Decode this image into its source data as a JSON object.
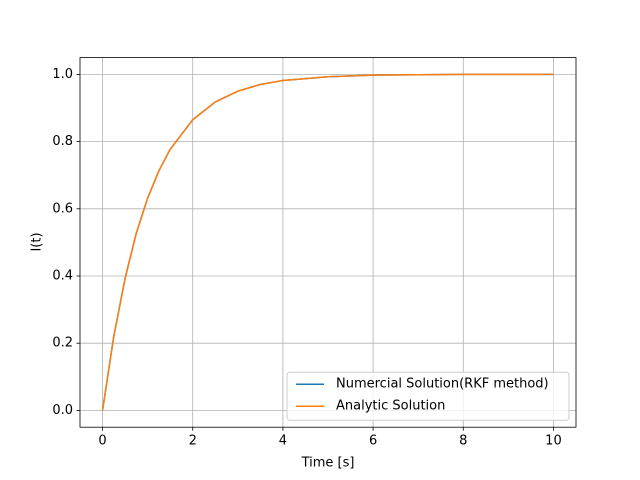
{
  "chart_data": {
    "type": "line",
    "xlabel": "Time [s]",
    "ylabel": "I(t)",
    "x": [
      0,
      0.25,
      0.5,
      0.75,
      1,
      1.25,
      1.5,
      2,
      2.5,
      3,
      3.5,
      4,
      5,
      6,
      7,
      8,
      9,
      10
    ],
    "series": [
      {
        "name": "Numercial Solution(RKF method)",
        "color": "#1f77b4",
        "values": [
          0,
          0.221,
          0.393,
          0.528,
          0.632,
          0.713,
          0.777,
          0.865,
          0.918,
          0.95,
          0.97,
          0.982,
          0.993,
          0.998,
          0.999,
          1.0,
          1.0,
          1.0
        ]
      },
      {
        "name": "Analytic Solution",
        "color": "#ff7f0e",
        "values": [
          0,
          0.221,
          0.393,
          0.528,
          0.632,
          0.713,
          0.777,
          0.865,
          0.918,
          0.95,
          0.97,
          0.982,
          0.993,
          0.998,
          0.999,
          1.0,
          1.0,
          1.0
        ]
      }
    ],
    "xlim": [
      -0.5,
      10.5
    ],
    "xticks": [
      0,
      2,
      4,
      6,
      8,
      10
    ],
    "ylim": [
      -0.05,
      1.05
    ],
    "yticks": [
      {
        "value": 0,
        "label": "0.0"
      },
      {
        "value": 0.2,
        "label": "0.2"
      },
      {
        "value": 0.4,
        "label": "0.4"
      },
      {
        "value": 0.6,
        "label": "0.6"
      },
      {
        "value": 0.8,
        "label": "0.8"
      },
      {
        "value": 1.0,
        "label": "1.0"
      }
    ],
    "grid": true,
    "legend": "lower right"
  }
}
